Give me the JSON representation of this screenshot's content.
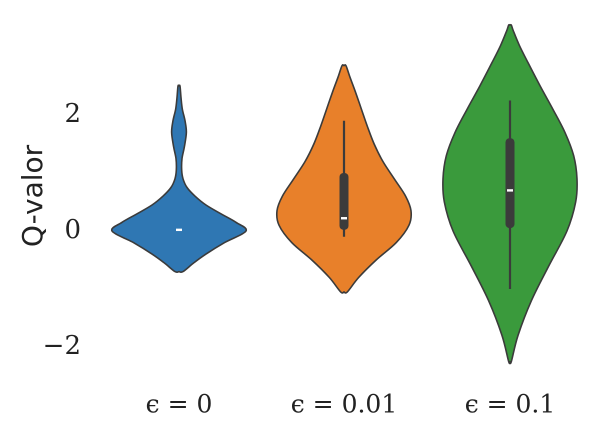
{
  "chart_data": {
    "type": "violin",
    "ylabel": "Q-valor",
    "ylim": [
      -2.5,
      3.5
    ],
    "yticks": [
      2,
      0,
      -2
    ],
    "ytick_labels": [
      "2",
      "0",
      "−2"
    ],
    "grid": false,
    "categories": [
      "ϵ = 0",
      "ϵ = 0.01",
      "ϵ = 0.1"
    ],
    "series": [
      {
        "color": "#2f77b3",
        "min": -0.7,
        "max": 2.5,
        "q1": 0.02,
        "median": 0.02,
        "q3": 0.02,
        "whisker_low": 0.02,
        "whisker_high": 0.02,
        "profile": [
          [
            -0.7,
            0.06
          ],
          [
            -0.55,
            0.22
          ],
          [
            -0.4,
            0.4
          ],
          [
            -0.2,
            0.68
          ],
          [
            0.0,
            1.0
          ],
          [
            0.15,
            0.85
          ],
          [
            0.3,
            0.62
          ],
          [
            0.45,
            0.4
          ],
          [
            0.6,
            0.24
          ],
          [
            0.75,
            0.12
          ],
          [
            0.9,
            0.06
          ],
          [
            1.05,
            0.04
          ],
          [
            1.25,
            0.045
          ],
          [
            1.45,
            0.08
          ],
          [
            1.7,
            0.11
          ],
          [
            1.9,
            0.09
          ],
          [
            2.1,
            0.05
          ],
          [
            2.3,
            0.03
          ],
          [
            2.5,
            0.015
          ]
        ]
      },
      {
        "color": "#e8802a",
        "min": -1.05,
        "max": 2.85,
        "q1": 0.02,
        "median": 0.22,
        "q3": 1.0,
        "whisker_low": -0.1,
        "whisker_high": 1.9,
        "profile": [
          [
            -1.05,
            0.05
          ],
          [
            -0.8,
            0.22
          ],
          [
            -0.5,
            0.48
          ],
          [
            -0.2,
            0.78
          ],
          [
            0.1,
            0.97
          ],
          [
            0.35,
            1.0
          ],
          [
            0.6,
            0.92
          ],
          [
            0.9,
            0.75
          ],
          [
            1.2,
            0.58
          ],
          [
            1.5,
            0.45
          ],
          [
            1.8,
            0.35
          ],
          [
            2.1,
            0.26
          ],
          [
            2.4,
            0.17
          ],
          [
            2.65,
            0.09
          ],
          [
            2.85,
            0.03
          ]
        ]
      },
      {
        "color": "#3a9a3c",
        "min": -2.25,
        "max": 3.55,
        "q1": 0.05,
        "median": 0.7,
        "q3": 1.6,
        "whisker_low": -1.0,
        "whisker_high": 2.25,
        "profile": [
          [
            -2.25,
            0.02
          ],
          [
            -1.8,
            0.12
          ],
          [
            -1.2,
            0.32
          ],
          [
            -0.6,
            0.58
          ],
          [
            0.0,
            0.85
          ],
          [
            0.5,
            0.98
          ],
          [
            0.9,
            1.0
          ],
          [
            1.3,
            0.95
          ],
          [
            1.7,
            0.82
          ],
          [
            2.1,
            0.64
          ],
          [
            2.5,
            0.45
          ],
          [
            2.9,
            0.27
          ],
          [
            3.2,
            0.14
          ],
          [
            3.45,
            0.05
          ],
          [
            3.55,
            0.02
          ]
        ]
      }
    ]
  }
}
